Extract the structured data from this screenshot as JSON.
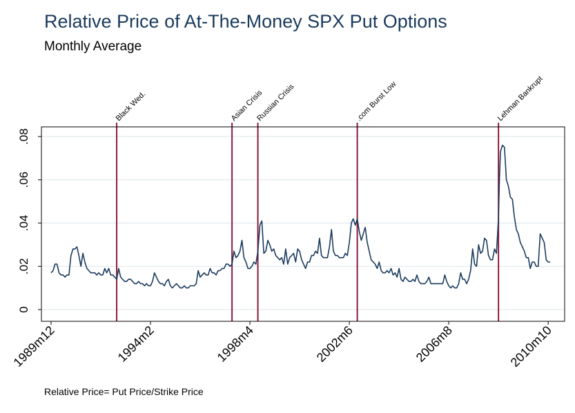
{
  "chart_data": {
    "type": "line",
    "title": "Relative Price of At-The-Money SPX Put Options",
    "subtitle": "Monthly Average",
    "note": "Relative Price= Put Price/Strike Price",
    "xlabel": "",
    "ylabel": "",
    "xlim": [
      1989.917,
      2010.833
    ],
    "ylim": [
      0,
      0.085
    ],
    "x_tick_values": [
      1989.917,
      1994.083,
      1998.25,
      2002.417,
      2006.583,
      2010.75
    ],
    "x_tick_labels": [
      "1989m12",
      "1994m2",
      "1998m4",
      "2002m6",
      "2006m8",
      "2010m10"
    ],
    "y_tick_values": [
      0,
      0.02,
      0.04,
      0.06,
      0.08
    ],
    "y_tick_labels": [
      "0",
      ".02",
      ".04",
      ".06",
      ".08"
    ],
    "grid": true,
    "line_color": "#1a3a5c",
    "event_color": "#8b1a3a",
    "events": [
      {
        "x": 1992.667,
        "label": "Black Wed."
      },
      {
        "x": 1997.5,
        "label": "Asian Crisis"
      },
      {
        "x": 1998.583,
        "label": "Russian Crisis"
      },
      {
        "x": 2002.75,
        "label": ".com Burst Low"
      },
      {
        "x": 2008.667,
        "label": "Lehman Bankrupt"
      }
    ],
    "series": [
      {
        "values": [
          [
            1989.917,
            0.017
          ],
          [
            1990.0,
            0.018
          ],
          [
            1990.083,
            0.021
          ],
          [
            1990.167,
            0.021
          ],
          [
            1990.25,
            0.017
          ],
          [
            1990.333,
            0.016
          ],
          [
            1990.417,
            0.016
          ],
          [
            1990.5,
            0.015
          ],
          [
            1990.583,
            0.016
          ],
          [
            1990.667,
            0.016
          ],
          [
            1990.75,
            0.025
          ],
          [
            1990.833,
            0.028
          ],
          [
            1990.917,
            0.028
          ],
          [
            1991.0,
            0.029
          ],
          [
            1991.083,
            0.025
          ],
          [
            1991.167,
            0.02
          ],
          [
            1991.25,
            0.026
          ],
          [
            1991.333,
            0.022
          ],
          [
            1991.417,
            0.019
          ],
          [
            1991.5,
            0.018
          ],
          [
            1991.583,
            0.017
          ],
          [
            1991.667,
            0.017
          ],
          [
            1991.75,
            0.017
          ],
          [
            1991.833,
            0.016
          ],
          [
            1991.917,
            0.017
          ],
          [
            1992.0,
            0.016
          ],
          [
            1992.083,
            0.016
          ],
          [
            1992.167,
            0.019
          ],
          [
            1992.25,
            0.017
          ],
          [
            1992.333,
            0.019
          ],
          [
            1992.417,
            0.016
          ],
          [
            1992.5,
            0.016
          ],
          [
            1992.583,
            0.015
          ],
          [
            1992.667,
            0.014
          ],
          [
            1992.75,
            0.019
          ],
          [
            1992.833,
            0.015
          ],
          [
            1992.917,
            0.014
          ],
          [
            1993.0,
            0.013
          ],
          [
            1993.083,
            0.013
          ],
          [
            1993.167,
            0.014
          ],
          [
            1993.25,
            0.014
          ],
          [
            1993.333,
            0.013
          ],
          [
            1993.417,
            0.012
          ],
          [
            1993.5,
            0.012
          ],
          [
            1993.583,
            0.013
          ],
          [
            1993.667,
            0.012
          ],
          [
            1993.75,
            0.012
          ],
          [
            1993.833,
            0.011
          ],
          [
            1993.917,
            0.012
          ],
          [
            1994.0,
            0.011
          ],
          [
            1994.083,
            0.011
          ],
          [
            1994.167,
            0.013
          ],
          [
            1994.25,
            0.017
          ],
          [
            1994.333,
            0.015
          ],
          [
            1994.417,
            0.013
          ],
          [
            1994.5,
            0.012
          ],
          [
            1994.583,
            0.012
          ],
          [
            1994.667,
            0.011
          ],
          [
            1994.75,
            0.013
          ],
          [
            1994.833,
            0.014
          ],
          [
            1994.917,
            0.011
          ],
          [
            1995.0,
            0.01
          ],
          [
            1995.083,
            0.011
          ],
          [
            1995.167,
            0.012
          ],
          [
            1995.25,
            0.011
          ],
          [
            1995.333,
            0.01
          ],
          [
            1995.417,
            0.01
          ],
          [
            1995.5,
            0.011
          ],
          [
            1995.583,
            0.01
          ],
          [
            1995.667,
            0.01
          ],
          [
            1995.75,
            0.011
          ],
          [
            1995.833,
            0.011
          ],
          [
            1995.917,
            0.011
          ],
          [
            1996.0,
            0.012
          ],
          [
            1996.083,
            0.018
          ],
          [
            1996.167,
            0.015
          ],
          [
            1996.25,
            0.016
          ],
          [
            1996.333,
            0.017
          ],
          [
            1996.417,
            0.016
          ],
          [
            1996.5,
            0.016
          ],
          [
            1996.583,
            0.019
          ],
          [
            1996.667,
            0.017
          ],
          [
            1996.75,
            0.017
          ],
          [
            1996.833,
            0.016
          ],
          [
            1996.917,
            0.018
          ],
          [
            1997.0,
            0.018
          ],
          [
            1997.083,
            0.019
          ],
          [
            1997.167,
            0.019
          ],
          [
            1997.25,
            0.021
          ],
          [
            1997.333,
            0.021
          ],
          [
            1997.417,
            0.02
          ],
          [
            1997.5,
            0.021
          ],
          [
            1997.583,
            0.027
          ],
          [
            1997.667,
            0.024
          ],
          [
            1997.75,
            0.025
          ],
          [
            1997.833,
            0.027
          ],
          [
            1997.917,
            0.032
          ],
          [
            1998.0,
            0.024
          ],
          [
            1998.083,
            0.022
          ],
          [
            1998.167,
            0.019
          ],
          [
            1998.25,
            0.019
          ],
          [
            1998.333,
            0.02
          ],
          [
            1998.417,
            0.022
          ],
          [
            1998.5,
            0.021
          ],
          [
            1998.583,
            0.027
          ],
          [
            1998.667,
            0.039
          ],
          [
            1998.75,
            0.041
          ],
          [
            1998.833,
            0.026
          ],
          [
            1998.917,
            0.027
          ],
          [
            1999.0,
            0.032
          ],
          [
            1999.083,
            0.03
          ],
          [
            1999.167,
            0.027
          ],
          [
            1999.25,
            0.028
          ],
          [
            1999.333,
            0.025
          ],
          [
            1999.417,
            0.024
          ],
          [
            1999.5,
            0.023
          ],
          [
            1999.583,
            0.024
          ],
          [
            1999.667,
            0.021
          ],
          [
            1999.75,
            0.028
          ],
          [
            1999.833,
            0.021
          ],
          [
            1999.917,
            0.024
          ],
          [
            2000.0,
            0.025
          ],
          [
            2000.083,
            0.026
          ],
          [
            2000.167,
            0.022
          ],
          [
            2000.25,
            0.028
          ],
          [
            2000.333,
            0.027
          ],
          [
            2000.417,
            0.023
          ],
          [
            2000.5,
            0.021
          ],
          [
            2000.583,
            0.019
          ],
          [
            2000.667,
            0.022
          ],
          [
            2000.75,
            0.022
          ],
          [
            2000.833,
            0.025
          ],
          [
            2000.917,
            0.025
          ],
          [
            2001.0,
            0.027
          ],
          [
            2001.083,
            0.026
          ],
          [
            2001.167,
            0.033
          ],
          [
            2001.25,
            0.025
          ],
          [
            2001.333,
            0.024
          ],
          [
            2001.417,
            0.024
          ],
          [
            2001.5,
            0.024
          ],
          [
            2001.583,
            0.029
          ],
          [
            2001.667,
            0.037
          ],
          [
            2001.75,
            0.027
          ],
          [
            2001.833,
            0.025
          ],
          [
            2001.917,
            0.025
          ],
          [
            2002.0,
            0.024
          ],
          [
            2002.083,
            0.024
          ],
          [
            2002.167,
            0.024
          ],
          [
            2002.25,
            0.026
          ],
          [
            2002.333,
            0.025
          ],
          [
            2002.417,
            0.031
          ],
          [
            2002.5,
            0.04
          ],
          [
            2002.583,
            0.042
          ],
          [
            2002.667,
            0.039
          ],
          [
            2002.75,
            0.042
          ],
          [
            2002.833,
            0.036
          ],
          [
            2002.917,
            0.032
          ],
          [
            2003.0,
            0.035
          ],
          [
            2003.083,
            0.038
          ],
          [
            2003.167,
            0.031
          ],
          [
            2003.25,
            0.027
          ],
          [
            2003.333,
            0.023
          ],
          [
            2003.417,
            0.022
          ],
          [
            2003.5,
            0.021
          ],
          [
            2003.583,
            0.019
          ],
          [
            2003.667,
            0.022
          ],
          [
            2003.75,
            0.018
          ],
          [
            2003.833,
            0.017
          ],
          [
            2003.917,
            0.017
          ],
          [
            2004.0,
            0.018
          ],
          [
            2004.083,
            0.017
          ],
          [
            2004.167,
            0.019
          ],
          [
            2004.25,
            0.016
          ],
          [
            2004.333,
            0.017
          ],
          [
            2004.417,
            0.015
          ],
          [
            2004.5,
            0.019
          ],
          [
            2004.583,
            0.014
          ],
          [
            2004.667,
            0.013
          ],
          [
            2004.75,
            0.015
          ],
          [
            2004.833,
            0.014
          ],
          [
            2004.917,
            0.013
          ],
          [
            2005.0,
            0.013
          ],
          [
            2005.083,
            0.014
          ],
          [
            2005.167,
            0.013
          ],
          [
            2005.25,
            0.016
          ],
          [
            2005.333,
            0.013
          ],
          [
            2005.417,
            0.012
          ],
          [
            2005.5,
            0.012
          ],
          [
            2005.583,
            0.012
          ],
          [
            2005.667,
            0.013
          ],
          [
            2005.75,
            0.015
          ],
          [
            2005.833,
            0.012
          ],
          [
            2005.917,
            0.012
          ],
          [
            2006.0,
            0.012
          ],
          [
            2006.083,
            0.012
          ],
          [
            2006.167,
            0.012
          ],
          [
            2006.25,
            0.012
          ],
          [
            2006.333,
            0.012
          ],
          [
            2006.417,
            0.016
          ],
          [
            2006.5,
            0.013
          ],
          [
            2006.583,
            0.011
          ],
          [
            2006.667,
            0.01
          ],
          [
            2006.75,
            0.011
          ],
          [
            2006.833,
            0.01
          ],
          [
            2006.917,
            0.01
          ],
          [
            2007.0,
            0.012
          ],
          [
            2007.083,
            0.017
          ],
          [
            2007.167,
            0.014
          ],
          [
            2007.25,
            0.014
          ],
          [
            2007.333,
            0.012
          ],
          [
            2007.417,
            0.014
          ],
          [
            2007.5,
            0.018
          ],
          [
            2007.583,
            0.028
          ],
          [
            2007.667,
            0.021
          ],
          [
            2007.75,
            0.02
          ],
          [
            2007.833,
            0.03
          ],
          [
            2007.917,
            0.026
          ],
          [
            2008.0,
            0.027
          ],
          [
            2008.083,
            0.033
          ],
          [
            2008.167,
            0.032
          ],
          [
            2008.25,
            0.025
          ],
          [
            2008.333,
            0.023
          ],
          [
            2008.417,
            0.023
          ],
          [
            2008.5,
            0.028
          ],
          [
            2008.583,
            0.026
          ],
          [
            2008.667,
            0.042
          ],
          [
            2008.708,
            0.06
          ],
          [
            2008.75,
            0.073
          ],
          [
            2008.833,
            0.076
          ],
          [
            2008.917,
            0.075
          ],
          [
            2009.0,
            0.06
          ],
          [
            2009.083,
            0.057
          ],
          [
            2009.167,
            0.052
          ],
          [
            2009.25,
            0.051
          ],
          [
            2009.333,
            0.043
          ],
          [
            2009.417,
            0.037
          ],
          [
            2009.5,
            0.035
          ],
          [
            2009.583,
            0.031
          ],
          [
            2009.667,
            0.029
          ],
          [
            2009.75,
            0.027
          ],
          [
            2009.833,
            0.024
          ],
          [
            2009.917,
            0.024
          ],
          [
            2010.0,
            0.019
          ],
          [
            2010.083,
            0.022
          ],
          [
            2010.167,
            0.022
          ],
          [
            2010.25,
            0.02
          ],
          [
            2010.333,
            0.02
          ],
          [
            2010.417,
            0.035
          ],
          [
            2010.5,
            0.033
          ],
          [
            2010.583,
            0.031
          ],
          [
            2010.667,
            0.023
          ],
          [
            2010.75,
            0.022
          ],
          [
            2010.833,
            0.022
          ]
        ]
      }
    ]
  }
}
